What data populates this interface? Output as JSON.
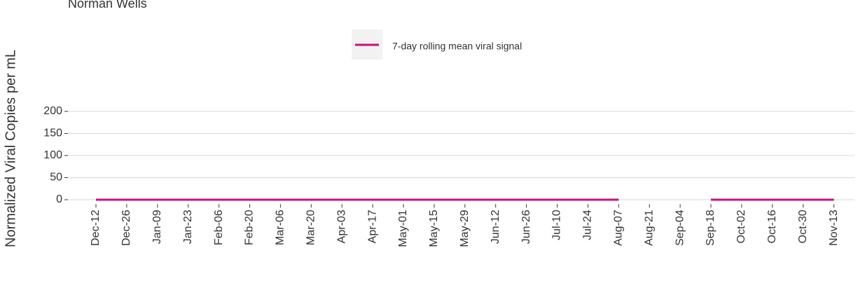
{
  "chart_data": {
    "type": "line",
    "title": "Norman Wells",
    "ylabel": "Normalized Viral Copies per mL",
    "categories": [
      "Dec-12",
      "Dec-26",
      "Jan-09",
      "Jan-23",
      "Feb-06",
      "Feb-20",
      "Mar-06",
      "Mar-20",
      "Apr-03",
      "Apr-17",
      "May-01",
      "May-15",
      "May-29",
      "Jun-12",
      "Jun-26",
      "Jul-10",
      "Jul-24",
      "Aug-07",
      "Aug-21",
      "Sep-04",
      "Sep-18",
      "Oct-02",
      "Oct-16",
      "Oct-30",
      "Nov-13"
    ],
    "series": [
      {
        "name": "7-day rolling mean viral signal",
        "color": "#c8107e",
        "values": [
          0,
          0,
          0,
          0,
          0,
          0,
          0,
          0,
          0,
          0,
          0,
          0,
          0,
          0,
          0,
          0,
          0,
          0,
          null,
          null,
          0,
          0,
          0,
          0,
          0
        ]
      }
    ],
    "ylim": [
      -10,
      212
    ],
    "yticks": [
      0,
      50,
      100,
      150,
      200
    ],
    "grid": true,
    "legend": "top"
  }
}
